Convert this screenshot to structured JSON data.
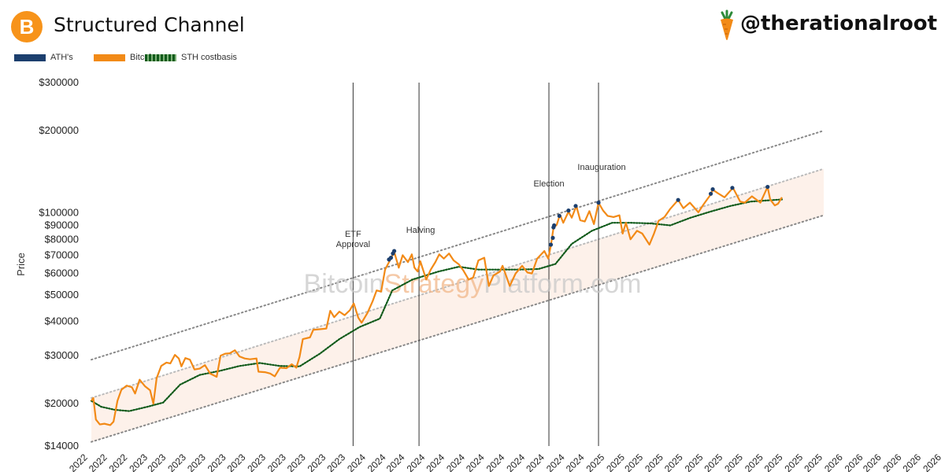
{
  "header": {
    "title": "Structured Channel",
    "logo_symbol": "B",
    "logo_icon": "bitcoin-logo-icon",
    "brand_icon": "carrot-icon",
    "handle": "@therationalroot"
  },
  "watermark": {
    "parts": [
      "Bitcoin",
      "Strategy",
      "Platform.com"
    ],
    "colors": [
      "#c9c9c9",
      "#f2b88a",
      "#c9c9c9"
    ]
  },
  "chart_data": {
    "type": "line",
    "title": "",
    "xlabel": "",
    "ylabel": "Price",
    "y_scale": "log",
    "ylim": [
      14000,
      300000
    ],
    "x_range": [
      "2022-12-05",
      "2026-06-30"
    ],
    "grid": false,
    "legend_position": "top-left",
    "legend": [
      {
        "name": "ATH's",
        "color": "#1c3f6e",
        "style": "marker"
      },
      {
        "name": "Bitcoin",
        "color": "#f28a17",
        "style": "line"
      },
      {
        "name": "STH costbasis",
        "color": "#0f5a1a",
        "style": "dotted"
      }
    ],
    "y_ticks": [
      {
        "value": 300000,
        "label": "$300000"
      },
      {
        "value": 200000,
        "label": "$200000"
      },
      {
        "value": 100000,
        "label": "$100000"
      },
      {
        "value": 90000,
        "label": "$90000"
      },
      {
        "value": 80000,
        "label": "$80000"
      },
      {
        "value": 70000,
        "label": "$70000"
      },
      {
        "value": 60000,
        "label": "$60000"
      },
      {
        "value": 50000,
        "label": "$50000"
      },
      {
        "value": 40000,
        "label": "$40000"
      },
      {
        "value": 30000,
        "label": "$30000"
      },
      {
        "value": 20000,
        "label": "$20000"
      },
      {
        "value": 14000,
        "label": "$14000"
      }
    ],
    "x_ticks": [
      {
        "date": "2022-11-25",
        "label": "2022"
      },
      {
        "date": "2022-12-25",
        "label": "2022"
      },
      {
        "date": "2023-01-25",
        "label": "2022"
      },
      {
        "date": "2023-02-25",
        "label": "2023"
      },
      {
        "date": "2023-03-25",
        "label": "2023"
      },
      {
        "date": "2023-04-25",
        "label": "2023"
      },
      {
        "date": "2023-05-25",
        "label": "2023"
      },
      {
        "date": "2023-06-25",
        "label": "2023"
      },
      {
        "date": "2023-07-25",
        "label": "2023"
      },
      {
        "date": "2023-08-25",
        "label": "2023"
      },
      {
        "date": "2023-09-25",
        "label": "2023"
      },
      {
        "date": "2023-10-25",
        "label": "2023"
      },
      {
        "date": "2023-11-25",
        "label": "2023"
      },
      {
        "date": "2023-12-25",
        "label": "2023"
      },
      {
        "date": "2024-01-25",
        "label": "2024"
      },
      {
        "date": "2024-02-25",
        "label": "2024"
      },
      {
        "date": "2024-03-25",
        "label": "2024"
      },
      {
        "date": "2024-04-25",
        "label": "2024"
      },
      {
        "date": "2024-05-25",
        "label": "2024"
      },
      {
        "date": "2024-06-25",
        "label": "2024"
      },
      {
        "date": "2024-07-25",
        "label": "2024"
      },
      {
        "date": "2024-08-25",
        "label": "2024"
      },
      {
        "date": "2024-09-25",
        "label": "2024"
      },
      {
        "date": "2024-10-25",
        "label": "2024"
      },
      {
        "date": "2024-11-25",
        "label": "2024"
      },
      {
        "date": "2024-12-25",
        "label": "2024"
      },
      {
        "date": "2025-01-25",
        "label": "2025"
      },
      {
        "date": "2025-02-25",
        "label": "2025"
      },
      {
        "date": "2025-03-25",
        "label": "2025"
      },
      {
        "date": "2025-04-25",
        "label": "2025"
      },
      {
        "date": "2025-05-25",
        "label": "2025"
      },
      {
        "date": "2025-06-25",
        "label": "2025"
      },
      {
        "date": "2025-07-25",
        "label": "2025"
      },
      {
        "date": "2025-08-25",
        "label": "2025"
      },
      {
        "date": "2025-09-25",
        "label": "2025"
      },
      {
        "date": "2025-10-25",
        "label": "2025"
      },
      {
        "date": "2025-11-25",
        "label": "2025"
      },
      {
        "date": "2025-12-25",
        "label": "2025"
      },
      {
        "date": "2026-01-25",
        "label": "2026"
      },
      {
        "date": "2026-02-25",
        "label": "2026"
      },
      {
        "date": "2026-03-25",
        "label": "2026"
      },
      {
        "date": "2026-04-25",
        "label": "2026"
      },
      {
        "date": "2026-05-25",
        "label": "2026"
      },
      {
        "date": "2026-06-25",
        "label": "2026"
      }
    ],
    "events": [
      {
        "date": "2024-01-10",
        "label": [
          "ETF",
          "Approval"
        ]
      },
      {
        "date": "2024-04-20",
        "label": [
          "Halving"
        ]
      },
      {
        "date": "2024-11-05",
        "label": [
          "Election"
        ]
      },
      {
        "date": "2025-01-20",
        "label": [
          "Inauguration"
        ]
      }
    ],
    "channel": {
      "upper": {
        "points": [
          [
            "2022-12-05",
            29000
          ],
          [
            "2025-12-31",
            200000
          ]
        ],
        "color": "#888888",
        "style": "dotted"
      },
      "middle": {
        "points": [
          [
            "2022-12-05",
            21000
          ],
          [
            "2025-12-31",
            145000
          ]
        ],
        "color": "#bbbbbb",
        "style": "dotted"
      },
      "lower": {
        "points": [
          [
            "2022-12-05",
            14500
          ],
          [
            "2025-12-31",
            98000
          ]
        ],
        "color": "#888888",
        "style": "dotted"
      },
      "fill_color": "#fdf1ea"
    },
    "series": [
      {
        "name": "Bitcoin",
        "color": "#f28a17",
        "points": [
          [
            "2022-12-05",
            20500
          ],
          [
            "2022-12-08",
            21000
          ],
          [
            "2022-12-12",
            17500
          ],
          [
            "2022-12-18",
            16800
          ],
          [
            "2022-12-25",
            16900
          ],
          [
            "2023-01-03",
            16700
          ],
          [
            "2023-01-08",
            17200
          ],
          [
            "2023-01-14",
            20500
          ],
          [
            "2023-01-20",
            22500
          ],
          [
            "2023-01-28",
            23300
          ],
          [
            "2023-02-05",
            23000
          ],
          [
            "2023-02-10",
            21800
          ],
          [
            "2023-02-17",
            24500
          ],
          [
            "2023-02-25",
            23200
          ],
          [
            "2023-03-05",
            22400
          ],
          [
            "2023-03-10",
            20000
          ],
          [
            "2023-03-15",
            24800
          ],
          [
            "2023-03-22",
            27500
          ],
          [
            "2023-03-30",
            28300
          ],
          [
            "2023-04-05",
            28100
          ],
          [
            "2023-04-12",
            30200
          ],
          [
            "2023-04-18",
            29300
          ],
          [
            "2023-04-22",
            27400
          ],
          [
            "2023-04-28",
            29400
          ],
          [
            "2023-05-05",
            29000
          ],
          [
            "2023-05-12",
            26700
          ],
          [
            "2023-05-20",
            26900
          ],
          [
            "2023-05-28",
            27700
          ],
          [
            "2023-06-05",
            25800
          ],
          [
            "2023-06-15",
            25100
          ],
          [
            "2023-06-21",
            30000
          ],
          [
            "2023-06-28",
            30500
          ],
          [
            "2023-07-05",
            30600
          ],
          [
            "2023-07-13",
            31400
          ],
          [
            "2023-07-20",
            29800
          ],
          [
            "2023-07-28",
            29300
          ],
          [
            "2023-08-05",
            29100
          ],
          [
            "2023-08-15",
            29300
          ],
          [
            "2023-08-18",
            26200
          ],
          [
            "2023-08-28",
            26100
          ],
          [
            "2023-09-05",
            25800
          ],
          [
            "2023-09-12",
            25200
          ],
          [
            "2023-09-20",
            27100
          ],
          [
            "2023-09-30",
            27000
          ],
          [
            "2023-10-08",
            27900
          ],
          [
            "2023-10-15",
            27100
          ],
          [
            "2023-10-20",
            29700
          ],
          [
            "2023-10-25",
            34500
          ],
          [
            "2023-11-05",
            35000
          ],
          [
            "2023-11-10",
            37300
          ],
          [
            "2023-11-20",
            37500
          ],
          [
            "2023-11-30",
            37700
          ],
          [
            "2023-12-06",
            43800
          ],
          [
            "2023-12-12",
            41500
          ],
          [
            "2023-12-20",
            43500
          ],
          [
            "2023-12-28",
            42200
          ],
          [
            "2024-01-05",
            44000
          ],
          [
            "2024-01-11",
            46600
          ],
          [
            "2024-01-18",
            41300
          ],
          [
            "2024-01-23",
            39600
          ],
          [
            "2024-02-01",
            43000
          ],
          [
            "2024-02-09",
            47500
          ],
          [
            "2024-02-15",
            52000
          ],
          [
            "2024-02-22",
            51500
          ],
          [
            "2024-02-28",
            62000
          ],
          [
            "2024-03-05",
            66000
          ],
          [
            "2024-03-13",
            72000
          ],
          [
            "2024-03-20",
            63000
          ],
          [
            "2024-03-26",
            70000
          ],
          [
            "2024-04-03",
            66000
          ],
          [
            "2024-04-09",
            70500
          ],
          [
            "2024-04-13",
            63000
          ],
          [
            "2024-04-18",
            61000
          ],
          [
            "2024-04-22",
            66500
          ],
          [
            "2024-05-01",
            57000
          ],
          [
            "2024-05-08",
            62000
          ],
          [
            "2024-05-15",
            66000
          ],
          [
            "2024-05-21",
            70500
          ],
          [
            "2024-05-28",
            68000
          ],
          [
            "2024-06-05",
            71000
          ],
          [
            "2024-06-12",
            67000
          ],
          [
            "2024-06-20",
            64800
          ],
          [
            "2024-06-27",
            61500
          ],
          [
            "2024-07-05",
            57000
          ],
          [
            "2024-07-12",
            58000
          ],
          [
            "2024-07-20",
            67000
          ],
          [
            "2024-07-29",
            68500
          ],
          [
            "2024-08-05",
            54000
          ],
          [
            "2024-08-12",
            59000
          ],
          [
            "2024-08-22",
            61000
          ],
          [
            "2024-08-26",
            64000
          ],
          [
            "2024-09-06",
            54000
          ],
          [
            "2024-09-15",
            60000
          ],
          [
            "2024-09-25",
            64000
          ],
          [
            "2024-10-03",
            60500
          ],
          [
            "2024-10-10",
            60000
          ],
          [
            "2024-10-18",
            68000
          ],
          [
            "2024-10-29",
            72500
          ],
          [
            "2024-11-04",
            68000
          ],
          [
            "2024-11-08",
            76000
          ],
          [
            "2024-11-12",
            88000
          ],
          [
            "2024-11-17",
            90500
          ],
          [
            "2024-11-22",
            98500
          ],
          [
            "2024-11-27",
            92000
          ],
          [
            "2024-12-05",
            101000
          ],
          [
            "2024-12-10",
            96000
          ],
          [
            "2024-12-17",
            106000
          ],
          [
            "2024-12-23",
            94000
          ],
          [
            "2024-12-30",
            93000
          ],
          [
            "2025-01-06",
            101500
          ],
          [
            "2025-01-13",
            91000
          ],
          [
            "2025-01-20",
            109000
          ],
          [
            "2025-01-27",
            102000
          ],
          [
            "2025-02-03",
            97500
          ],
          [
            "2025-02-12",
            96500
          ],
          [
            "2025-02-21",
            98000
          ],
          [
            "2025-02-26",
            84000
          ],
          [
            "2025-03-03",
            92000
          ],
          [
            "2025-03-10",
            80000
          ],
          [
            "2025-03-20",
            86000
          ],
          [
            "2025-03-28",
            84000
          ],
          [
            "2025-04-08",
            76500
          ],
          [
            "2025-04-15",
            84000
          ],
          [
            "2025-04-22",
            93500
          ],
          [
            "2025-05-01",
            96500
          ],
          [
            "2025-05-10",
            103500
          ],
          [
            "2025-05-22",
            111500
          ],
          [
            "2025-05-30",
            104000
          ],
          [
            "2025-06-09",
            109000
          ],
          [
            "2025-06-22",
            100500
          ],
          [
            "2025-06-30",
            107500
          ],
          [
            "2025-07-10",
            116000
          ],
          [
            "2025-07-14",
            121500
          ],
          [
            "2025-07-22",
            118000
          ],
          [
            "2025-08-01",
            114000
          ],
          [
            "2025-08-14",
            123500
          ],
          [
            "2025-08-25",
            110000
          ],
          [
            "2025-09-01",
            109000
          ],
          [
            "2025-09-12",
            115000
          ],
          [
            "2025-09-25",
            109000
          ],
          [
            "2025-10-06",
            124500
          ],
          [
            "2025-10-10",
            112000
          ],
          [
            "2025-10-17",
            106500
          ],
          [
            "2025-10-22",
            108000
          ],
          [
            "2025-10-28",
            114000
          ]
        ]
      },
      {
        "name": "STH costbasis",
        "color": "#0f5a1a",
        "points": [
          [
            "2022-12-05",
            20500
          ],
          [
            "2022-12-20",
            19500
          ],
          [
            "2023-01-10",
            19000
          ],
          [
            "2023-02-01",
            18800
          ],
          [
            "2023-03-01",
            19500
          ],
          [
            "2023-03-25",
            20200
          ],
          [
            "2023-04-20",
            23500
          ],
          [
            "2023-05-20",
            25500
          ],
          [
            "2023-06-20",
            26400
          ],
          [
            "2023-07-20",
            27500
          ],
          [
            "2023-08-20",
            28200
          ],
          [
            "2023-09-20",
            27500
          ],
          [
            "2023-10-20",
            27400
          ],
          [
            "2023-11-20",
            30500
          ],
          [
            "2023-12-20",
            34500
          ],
          [
            "2024-01-20",
            38200
          ],
          [
            "2024-02-20",
            41000
          ],
          [
            "2024-03-10",
            52000
          ],
          [
            "2024-04-10",
            57000
          ],
          [
            "2024-05-20",
            61000
          ],
          [
            "2024-06-20",
            63500
          ],
          [
            "2024-07-20",
            62000
          ],
          [
            "2024-08-20",
            62000
          ],
          [
            "2024-09-20",
            62000
          ],
          [
            "2024-10-20",
            62300
          ],
          [
            "2024-11-15",
            65000
          ],
          [
            "2024-12-10",
            77000
          ],
          [
            "2025-01-10",
            86000
          ],
          [
            "2025-02-10",
            92000
          ],
          [
            "2025-03-10",
            92000
          ],
          [
            "2025-04-10",
            91500
          ],
          [
            "2025-05-10",
            90000
          ],
          [
            "2025-06-10",
            96000
          ],
          [
            "2025-07-10",
            101000
          ],
          [
            "2025-08-10",
            106000
          ],
          [
            "2025-09-10",
            110000
          ],
          [
            "2025-10-28",
            112000
          ]
        ]
      }
    ],
    "ath_points": [
      [
        "2024-03-05",
        67500
      ],
      [
        "2024-03-08",
        68500
      ],
      [
        "2024-03-11",
        71000
      ],
      [
        "2024-03-13",
        72500
      ],
      [
        "2024-11-08",
        76500
      ],
      [
        "2024-11-11",
        81000
      ],
      [
        "2024-11-12",
        88500
      ],
      [
        "2024-11-13",
        90000
      ],
      [
        "2024-11-21",
        97500
      ],
      [
        "2024-12-05",
        102000
      ],
      [
        "2024-12-16",
        106000
      ],
      [
        "2025-01-20",
        109000
      ],
      [
        "2025-05-22",
        111500
      ],
      [
        "2025-07-11",
        117500
      ],
      [
        "2025-07-14",
        122000
      ],
      [
        "2025-08-13",
        123500
      ],
      [
        "2025-10-06",
        124500
      ]
    ]
  }
}
